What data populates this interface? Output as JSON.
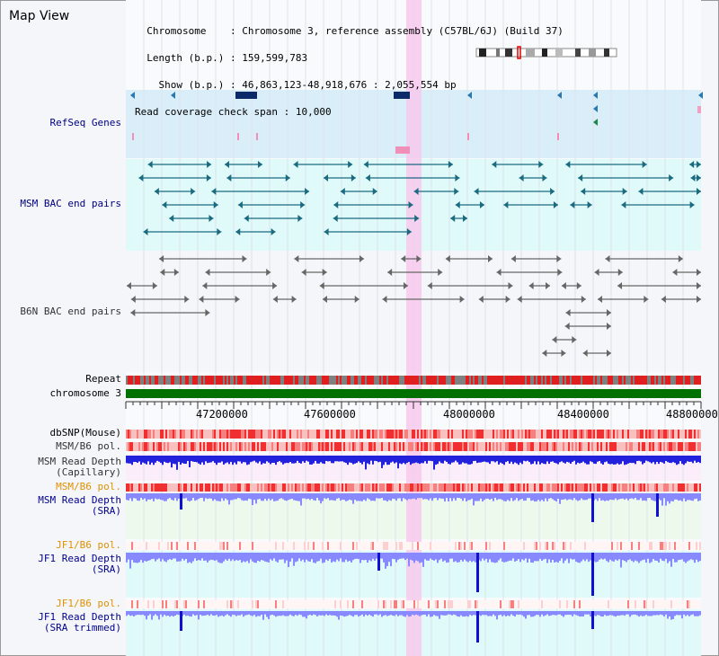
{
  "panel": {
    "title": "Map View"
  },
  "header": {
    "chromosome_label": "Chromosome",
    "chromosome_value": "Chromosome 3, reference assembly (C57BL/6J) (Build 37)",
    "length_label": "Length (b.p.)",
    "length_value": "159,599,783",
    "show_label": "Show (b.p.)",
    "show_value": "46,863,123-48,918,676 : 2,055,554 bp",
    "coverage_label": "Read coverage check span",
    "coverage_value": "10,000"
  },
  "tracks": {
    "refseq": "RefSeq Genes",
    "msm_bac": "MSM BAC end pairs",
    "b6n_bac": "B6N BAC end pairs",
    "repeat": "Repeat",
    "chromosome": "chromosome 3",
    "dbsnp": "dbSNP(Mouse)",
    "msm_b6_pol_1": "MSM/B6 pol.",
    "msm_read_depth_cap_1": "MSM Read Depth",
    "msm_read_depth_cap_2": "(Capillary)",
    "msm_b6_pol_2": "MSM/B6 pol.",
    "msm_read_depth_sra_1": "MSM Read Depth",
    "msm_read_depth_sra_2": "(SRA)",
    "jf1_b6_pol_1": "JF1/B6 pol.",
    "jf1_read_depth_sra_1": "JF1 Read Depth",
    "jf1_read_depth_sra_2": "(SRA)",
    "jf1_b6_pol_2": "JF1/B6 pol.",
    "jf1_read_depth_trim_1": "JF1 Read Depth",
    "jf1_read_depth_trim_2": "(SRA trimmed)"
  },
  "axis": {
    "ticks": [
      "47200000",
      "47600000",
      "48000000",
      "48400000",
      "48800000"
    ]
  },
  "colors": {
    "refseq_bg": "#daeefa",
    "msm_bg": "#e0fafa",
    "b6n_bg": "#f4f6fa",
    "highlight": "#f7c9ec",
    "chromosome_bar": "#007000",
    "repeat_red": "#e02020",
    "repeat_gray": "#808080",
    "depth_capillary": "#2222dd",
    "depth_sra": "#8888ff",
    "pol_red": "#f03030",
    "msm_bac_line": "#1a6a80",
    "b6n_bac_line": "#666666"
  }
}
